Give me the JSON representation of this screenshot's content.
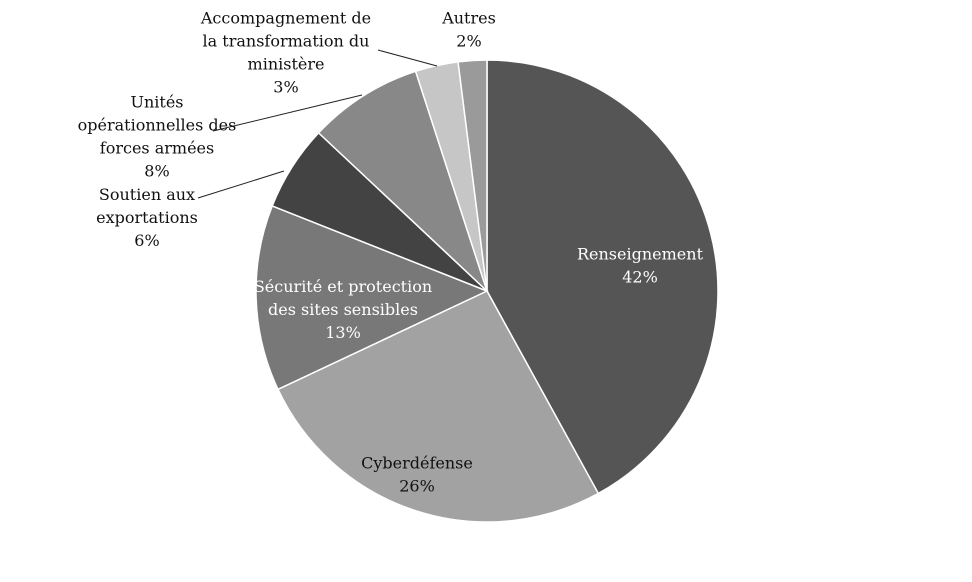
{
  "chart_data": {
    "type": "pie",
    "title": "",
    "start_angle_deg": 0,
    "direction": "clockwise",
    "slices": [
      {
        "label": [
          "Renseignement"
        ],
        "value": 42,
        "value_label": "42%",
        "color": "#555555",
        "label_color": "#ffffff"
      },
      {
        "label": [
          "Cyberdéfense"
        ],
        "value": 26,
        "value_label": "26%",
        "color": "#a2a2a2",
        "label_color": "#111111"
      },
      {
        "label": [
          "Sécurité et protection",
          "des sites sensibles"
        ],
        "value": 13,
        "value_label": "13%",
        "color": "#787878",
        "label_color": "#ffffff"
      },
      {
        "label": [
          "Soutien aux",
          "exportations"
        ],
        "value": 6,
        "value_label": "6%",
        "color": "#434343",
        "label_color": "#111111"
      },
      {
        "label": [
          "Unités",
          "opérationnelles des",
          "forces armées"
        ],
        "value": 8,
        "value_label": "8%",
        "color": "#888888",
        "label_color": "#111111"
      },
      {
        "label": [
          "Accompagnement de",
          "la transformation du",
          "ministère"
        ],
        "value": 3,
        "value_label": "3%",
        "color": "#c6c6c6",
        "label_color": "#111111"
      },
      {
        "label": [
          "Autres"
        ],
        "value": 2,
        "value_label": "2%",
        "color": "#9a9a9a",
        "label_color": "#111111"
      }
    ],
    "legend": "none"
  }
}
